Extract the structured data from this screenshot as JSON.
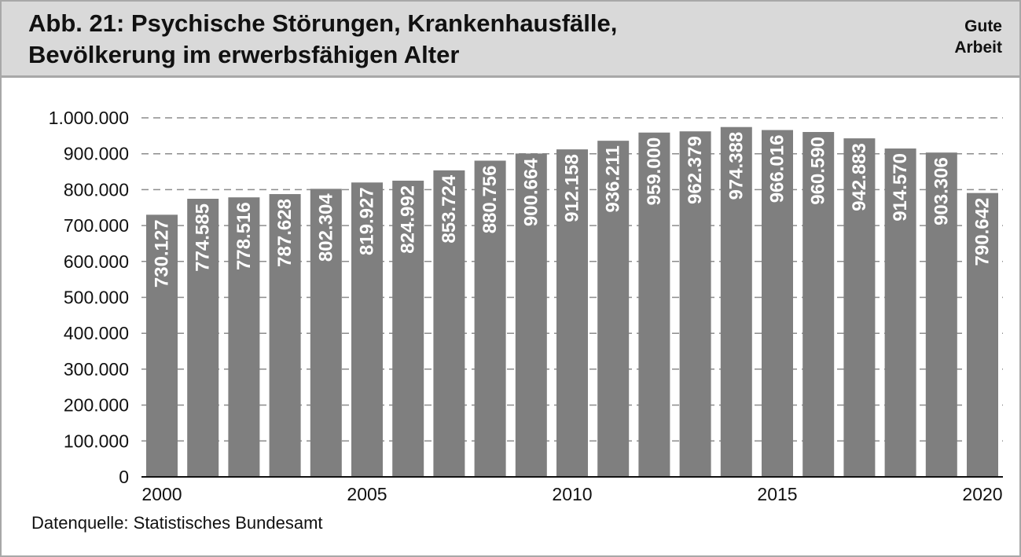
{
  "header": {
    "title_line1": "Abb. 21: Psychische Störungen, Krankenhausfälle,",
    "title_line2": "Bevölkerung im erwerbsfähigen Alter",
    "brand_line1": "Gute",
    "brand_line2": "Arbeit"
  },
  "source": "Datenquelle: Statistisches Bundesamt",
  "colors": {
    "bar": "#7f7f7f",
    "header_bg": "#d9d9d9",
    "border": "#a8a8a8",
    "grid": "#8c8c8c"
  },
  "chart_data": {
    "type": "bar",
    "categories": [
      "2000",
      "2001",
      "2002",
      "2003",
      "2004",
      "2005",
      "2006",
      "2007",
      "2008",
      "2009",
      "2010",
      "2011",
      "2012",
      "2013",
      "2014",
      "2015",
      "2016",
      "2017",
      "2018",
      "2019",
      "2020"
    ],
    "values": [
      730127,
      774585,
      778516,
      787628,
      802304,
      819927,
      824992,
      853724,
      880756,
      900664,
      912158,
      936211,
      959000,
      962379,
      974388,
      966016,
      960590,
      942883,
      914570,
      903306,
      790642
    ],
    "data_labels": [
      "730.127",
      "774.585",
      "778.516",
      "787.628",
      "802.304",
      "819.927",
      "824.992",
      "853.724",
      "880.756",
      "900.664",
      "912.158",
      "936.211",
      "959.000",
      "962.379",
      "974.388",
      "966.016",
      "960.590",
      "942.883",
      "914.570",
      "903.306",
      "790.642"
    ],
    "x_tick_labels": [
      "2000",
      "",
      "",
      "",
      "",
      "2005",
      "",
      "",
      "",
      "",
      "2010",
      "",
      "",
      "",
      "",
      "2015",
      "",
      "",
      "",
      "",
      "2020"
    ],
    "y_ticks": [
      0,
      100000,
      200000,
      300000,
      400000,
      500000,
      600000,
      700000,
      800000,
      900000,
      1000000
    ],
    "y_tick_labels": [
      "0",
      "100.000",
      "200.000",
      "300.000",
      "400.000",
      "500.000",
      "600.000",
      "700.000",
      "800.000",
      "900.000",
      "1.000.000"
    ],
    "ylim": [
      0,
      1000000
    ],
    "grid": true,
    "legend": "none",
    "title": "Abb. 21: Psychische Störungen, Krankenhausfälle, Bevölkerung im erwerbsfähigen Alter",
    "xlabel": "",
    "ylabel": ""
  }
}
